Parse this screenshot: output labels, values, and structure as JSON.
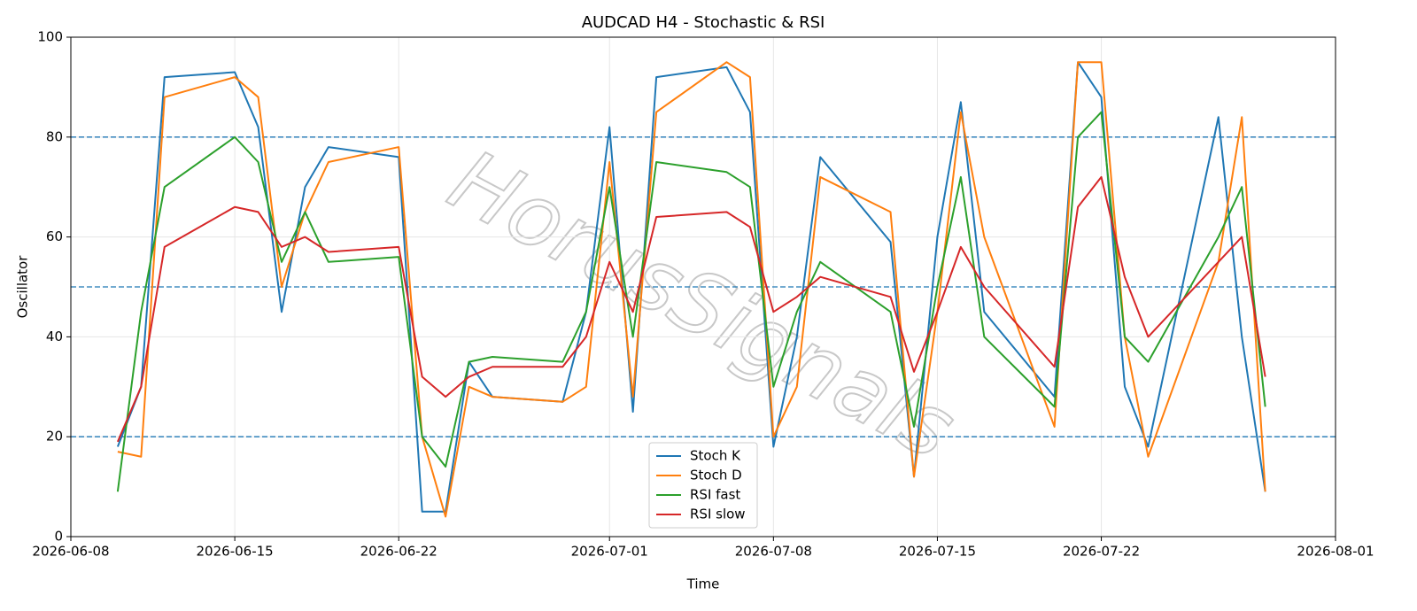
{
  "chart_data": {
    "type": "line",
    "title": "AUDCAD H4 - Stochastic & RSI",
    "xlabel": "Time",
    "ylabel": "Oscillator",
    "watermark": "HorusSignals",
    "x": [
      "2026-06-10",
      "2026-06-11",
      "2026-06-12",
      "2026-06-15",
      "2026-06-16",
      "2026-06-17",
      "2026-06-18",
      "2026-06-19",
      "2026-06-22",
      "2026-06-23",
      "2026-06-24",
      "2026-06-25",
      "2026-06-26",
      "2026-06-29",
      "2026-06-30",
      "2026-07-01",
      "2026-07-02",
      "2026-07-03",
      "2026-07-06",
      "2026-07-07",
      "2026-07-08",
      "2026-07-09",
      "2026-07-10",
      "2026-07-13",
      "2026-07-14",
      "2026-07-15",
      "2026-07-16",
      "2026-07-17",
      "2026-07-20",
      "2026-07-21",
      "2026-07-22",
      "2026-07-23",
      "2026-07-24",
      "2026-07-27",
      "2026-07-28",
      "2026-07-29"
    ],
    "series": [
      {
        "name": "Stoch K",
        "color": "#1f77b4",
        "values": [
          18,
          30,
          92,
          93,
          82,
          45,
          70,
          78,
          76,
          5,
          5,
          35,
          28,
          27,
          45,
          82,
          25,
          92,
          94,
          85,
          18,
          40,
          76,
          59,
          12,
          60,
          87,
          45,
          28,
          95,
          88,
          30,
          18,
          84,
          40,
          9
        ]
      },
      {
        "name": "Stoch D",
        "color": "#ff7f0e",
        "values": [
          17,
          16,
          88,
          92,
          88,
          50,
          65,
          75,
          78,
          20,
          4,
          30,
          28,
          27,
          30,
          75,
          28,
          85,
          95,
          92,
          20,
          30,
          72,
          65,
          12,
          45,
          85,
          60,
          22,
          95,
          95,
          40,
          16,
          55,
          84,
          9
        ]
      },
      {
        "name": "RSI fast",
        "color": "#2ca02c",
        "values": [
          9,
          45,
          70,
          80,
          75,
          55,
          65,
          55,
          56,
          20,
          14,
          35,
          36,
          35,
          45,
          70,
          40,
          75,
          73,
          70,
          30,
          45,
          55,
          45,
          22,
          50,
          72,
          40,
          26,
          80,
          85,
          40,
          35,
          60,
          70,
          26
        ]
      },
      {
        "name": "RSI slow",
        "color": "#d62728",
        "values": [
          19,
          30,
          58,
          66,
          65,
          58,
          60,
          57,
          58,
          32,
          28,
          32,
          34,
          34,
          40,
          55,
          45,
          64,
          65,
          62,
          45,
          48,
          52,
          48,
          33,
          45,
          58,
          50,
          34,
          66,
          72,
          52,
          40,
          55,
          60,
          32
        ]
      }
    ],
    "xlim": [
      "2026-06-08",
      "2026-08-01"
    ],
    "xticks": [
      "2026-06-08",
      "2026-06-15",
      "2026-06-22",
      "2026-07-01",
      "2026-07-08",
      "2026-07-15",
      "2026-07-22",
      "2026-08-01"
    ],
    "ylim": [
      0,
      100
    ],
    "yticks": [
      0,
      20,
      40,
      60,
      80,
      100
    ],
    "hlines": [
      20,
      50,
      80
    ],
    "hline_color": "#1f77b4",
    "grid": true,
    "legend": "lower center"
  }
}
